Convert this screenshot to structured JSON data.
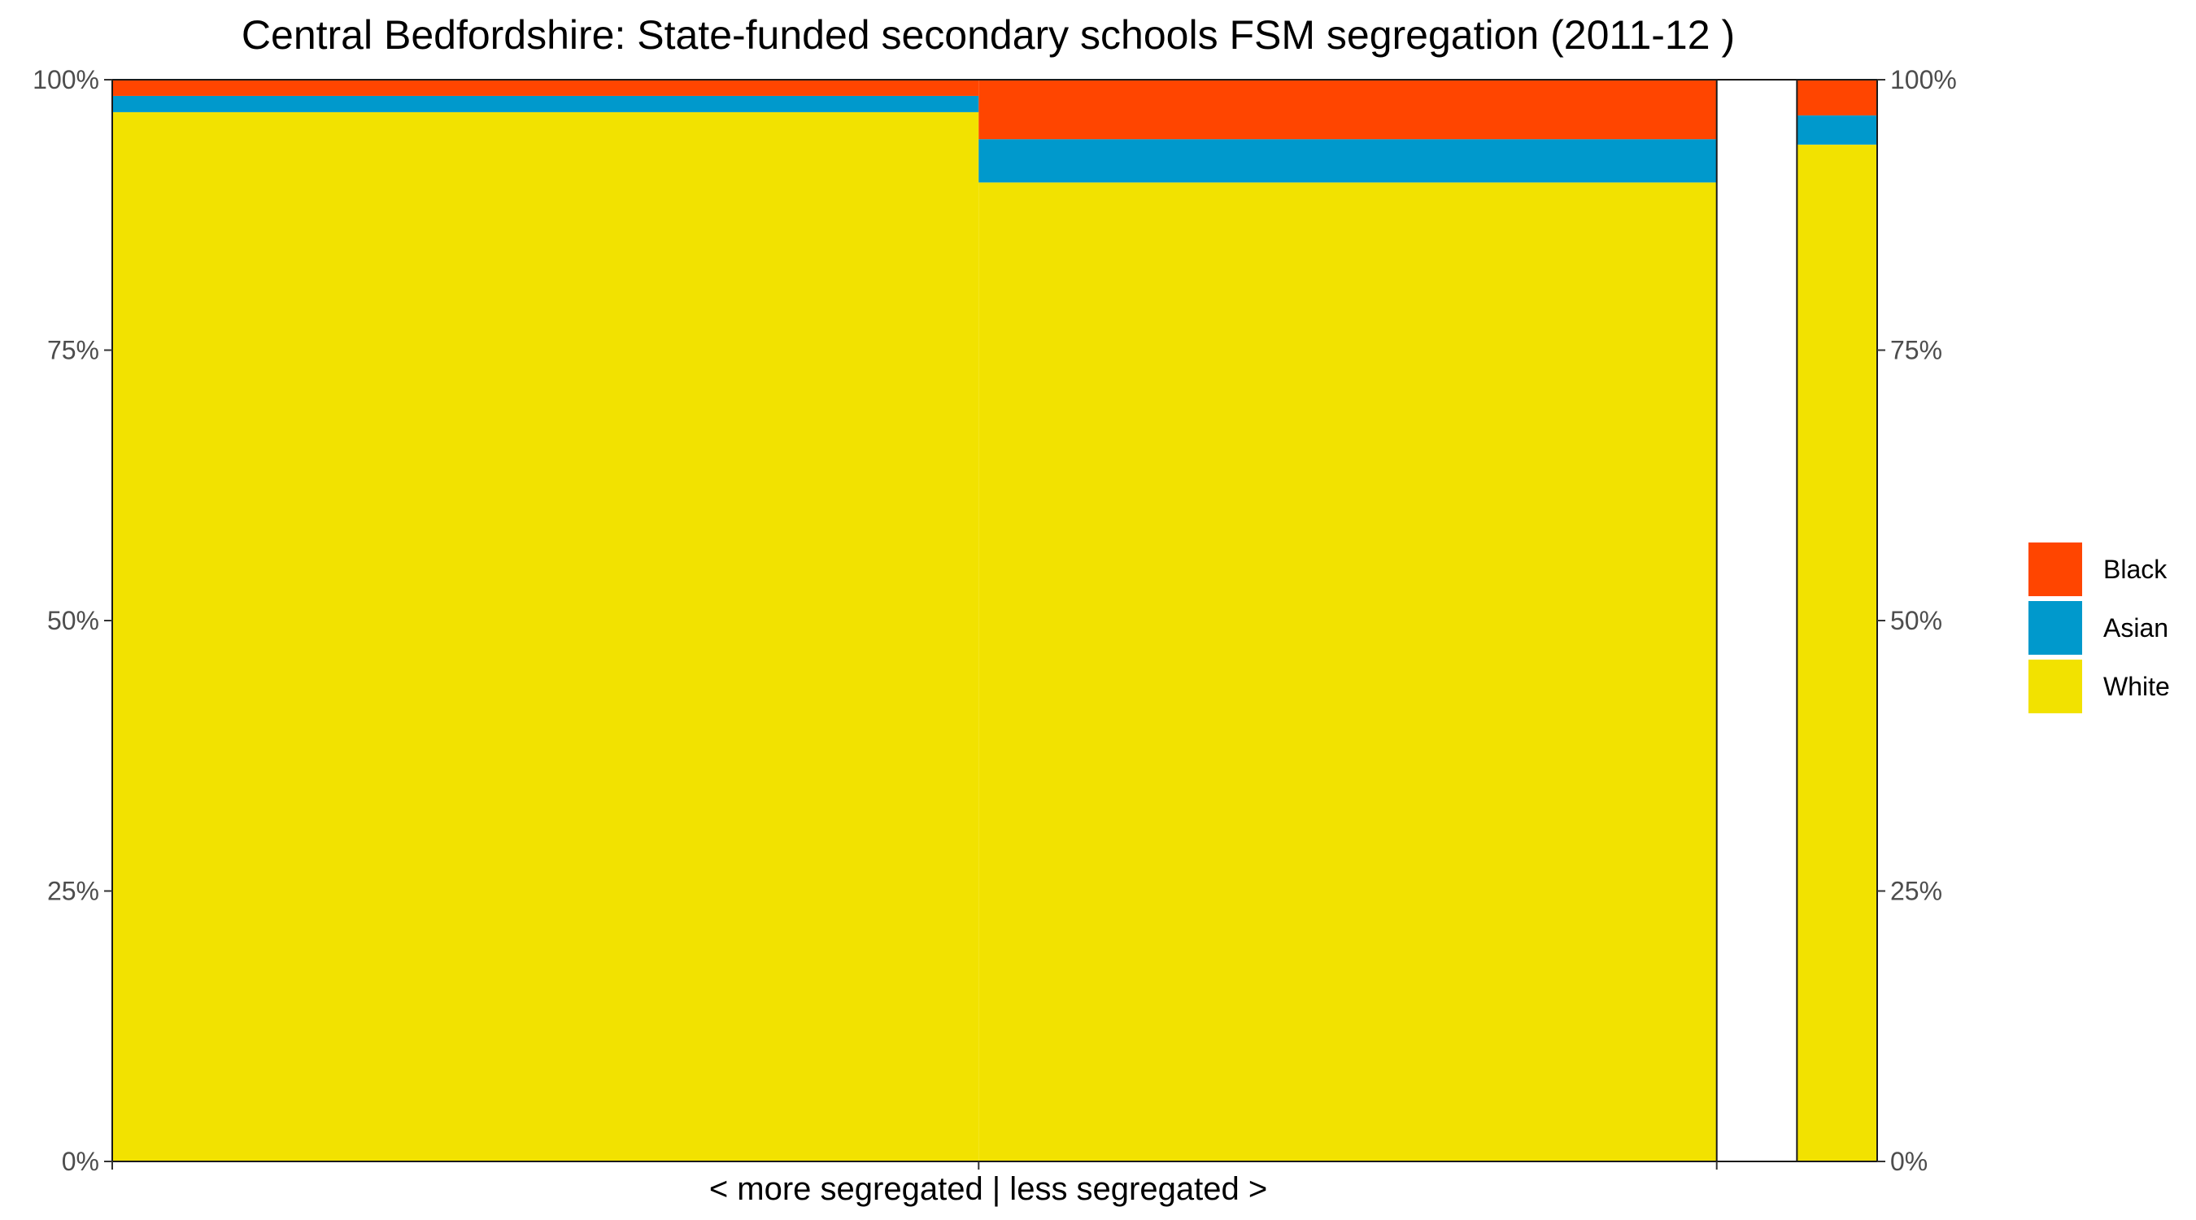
{
  "chart_data": {
    "type": "bar",
    "title": "Central Bedfordshire: State-funded secondary schools FSM segregation (2011-12 )",
    "xlabel": "< more segregated | less segregated >",
    "ylabel": "",
    "ylim": [
      0,
      1
    ],
    "y_ticks": [
      "0%",
      "25%",
      "50%",
      "75%",
      "100%"
    ],
    "y_tick_values": [
      0,
      0.25,
      0.5,
      0.75,
      1.0
    ],
    "columns": [
      {
        "width": 0.54,
        "White": 0.97,
        "Asian": 0.015,
        "Black": 0.015
      },
      {
        "width": 0.46,
        "White": 0.905,
        "Asian": 0.04,
        "Black": 0.055
      },
      {
        "width": 0.05,
        "White": 0.0,
        "Asian": 0.0,
        "Black": 0.0
      },
      {
        "width": 0.05,
        "White": 0.94,
        "Asian": 0.027,
        "Black": 0.033
      }
    ],
    "series": [
      {
        "name": "White",
        "color": "#F2E200"
      },
      {
        "name": "Asian",
        "color": "#0099CC"
      },
      {
        "name": "Black",
        "color": "#FF4500"
      }
    ],
    "legend": [
      "Black",
      "Asian",
      "White"
    ],
    "legend_position": "right",
    "grid": false
  }
}
